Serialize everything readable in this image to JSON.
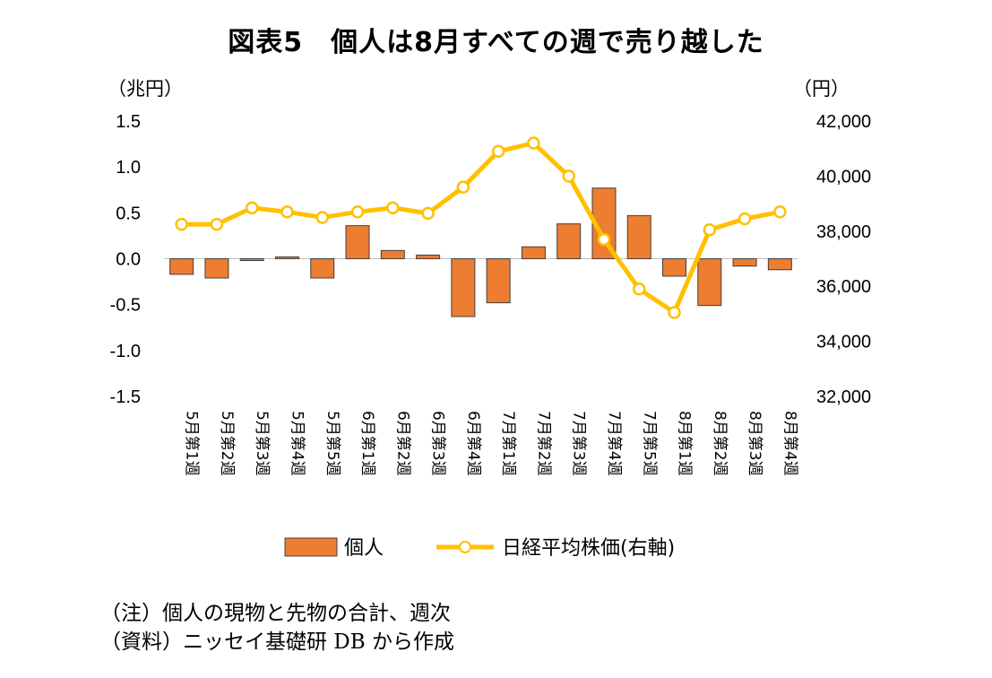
{
  "chart_data": {
    "type": "bar+line",
    "title": "図表5　個人は8月すべての週で売り越した",
    "y_left": {
      "unit": "（兆円）",
      "ylim": [
        -1.5,
        1.5
      ],
      "ticks": [
        "1.5",
        "1.0",
        "0.5",
        "0.0",
        "-0.5",
        "-1.0",
        "-1.5"
      ],
      "tick_values": [
        1.5,
        1.0,
        0.5,
        0.0,
        -0.5,
        -1.0,
        -1.5
      ]
    },
    "y_right": {
      "unit": "（円）",
      "ylim": [
        32000,
        42000
      ],
      "ticks": [
        "42,000",
        "40,000",
        "38,000",
        "36,000",
        "34,000",
        "32,000"
      ],
      "tick_values": [
        42000,
        40000,
        38000,
        36000,
        34000,
        32000
      ]
    },
    "categories": [
      "5月第1週",
      "5月第2週",
      "5月第3週",
      "5月第4週",
      "5月第5週",
      "6月第1週",
      "6月第2週",
      "6月第3週",
      "6月第4週",
      "7月第1週",
      "7月第2週",
      "7月第3週",
      "7月第4週",
      "7月第5週",
      "8月第1週",
      "8月第2週",
      "8月第3週",
      "8月第4週"
    ],
    "series": [
      {
        "name": "個人",
        "type": "bar",
        "axis": "left",
        "color": "#ED7D31",
        "values": [
          -0.17,
          -0.21,
          -0.02,
          0.02,
          -0.21,
          0.36,
          0.09,
          0.04,
          -0.63,
          -0.48,
          0.13,
          0.38,
          0.77,
          0.47,
          -0.19,
          -0.51,
          -0.08,
          -0.12
        ]
      },
      {
        "name": "日経平均株価(右軸)",
        "type": "line",
        "axis": "right",
        "color": "#FFC000",
        "values": [
          38250,
          38250,
          38850,
          38700,
          38500,
          38700,
          38850,
          38650,
          39600,
          40900,
          41200,
          40000,
          37700,
          35900,
          35050,
          38050,
          38450,
          38700
        ]
      }
    ],
    "legend_position": "bottom",
    "grid": false
  },
  "notes": [
    "（注）個人の現物と先物の合計、週次",
    "（資料）ニッセイ基礎研 DB から作成"
  ]
}
